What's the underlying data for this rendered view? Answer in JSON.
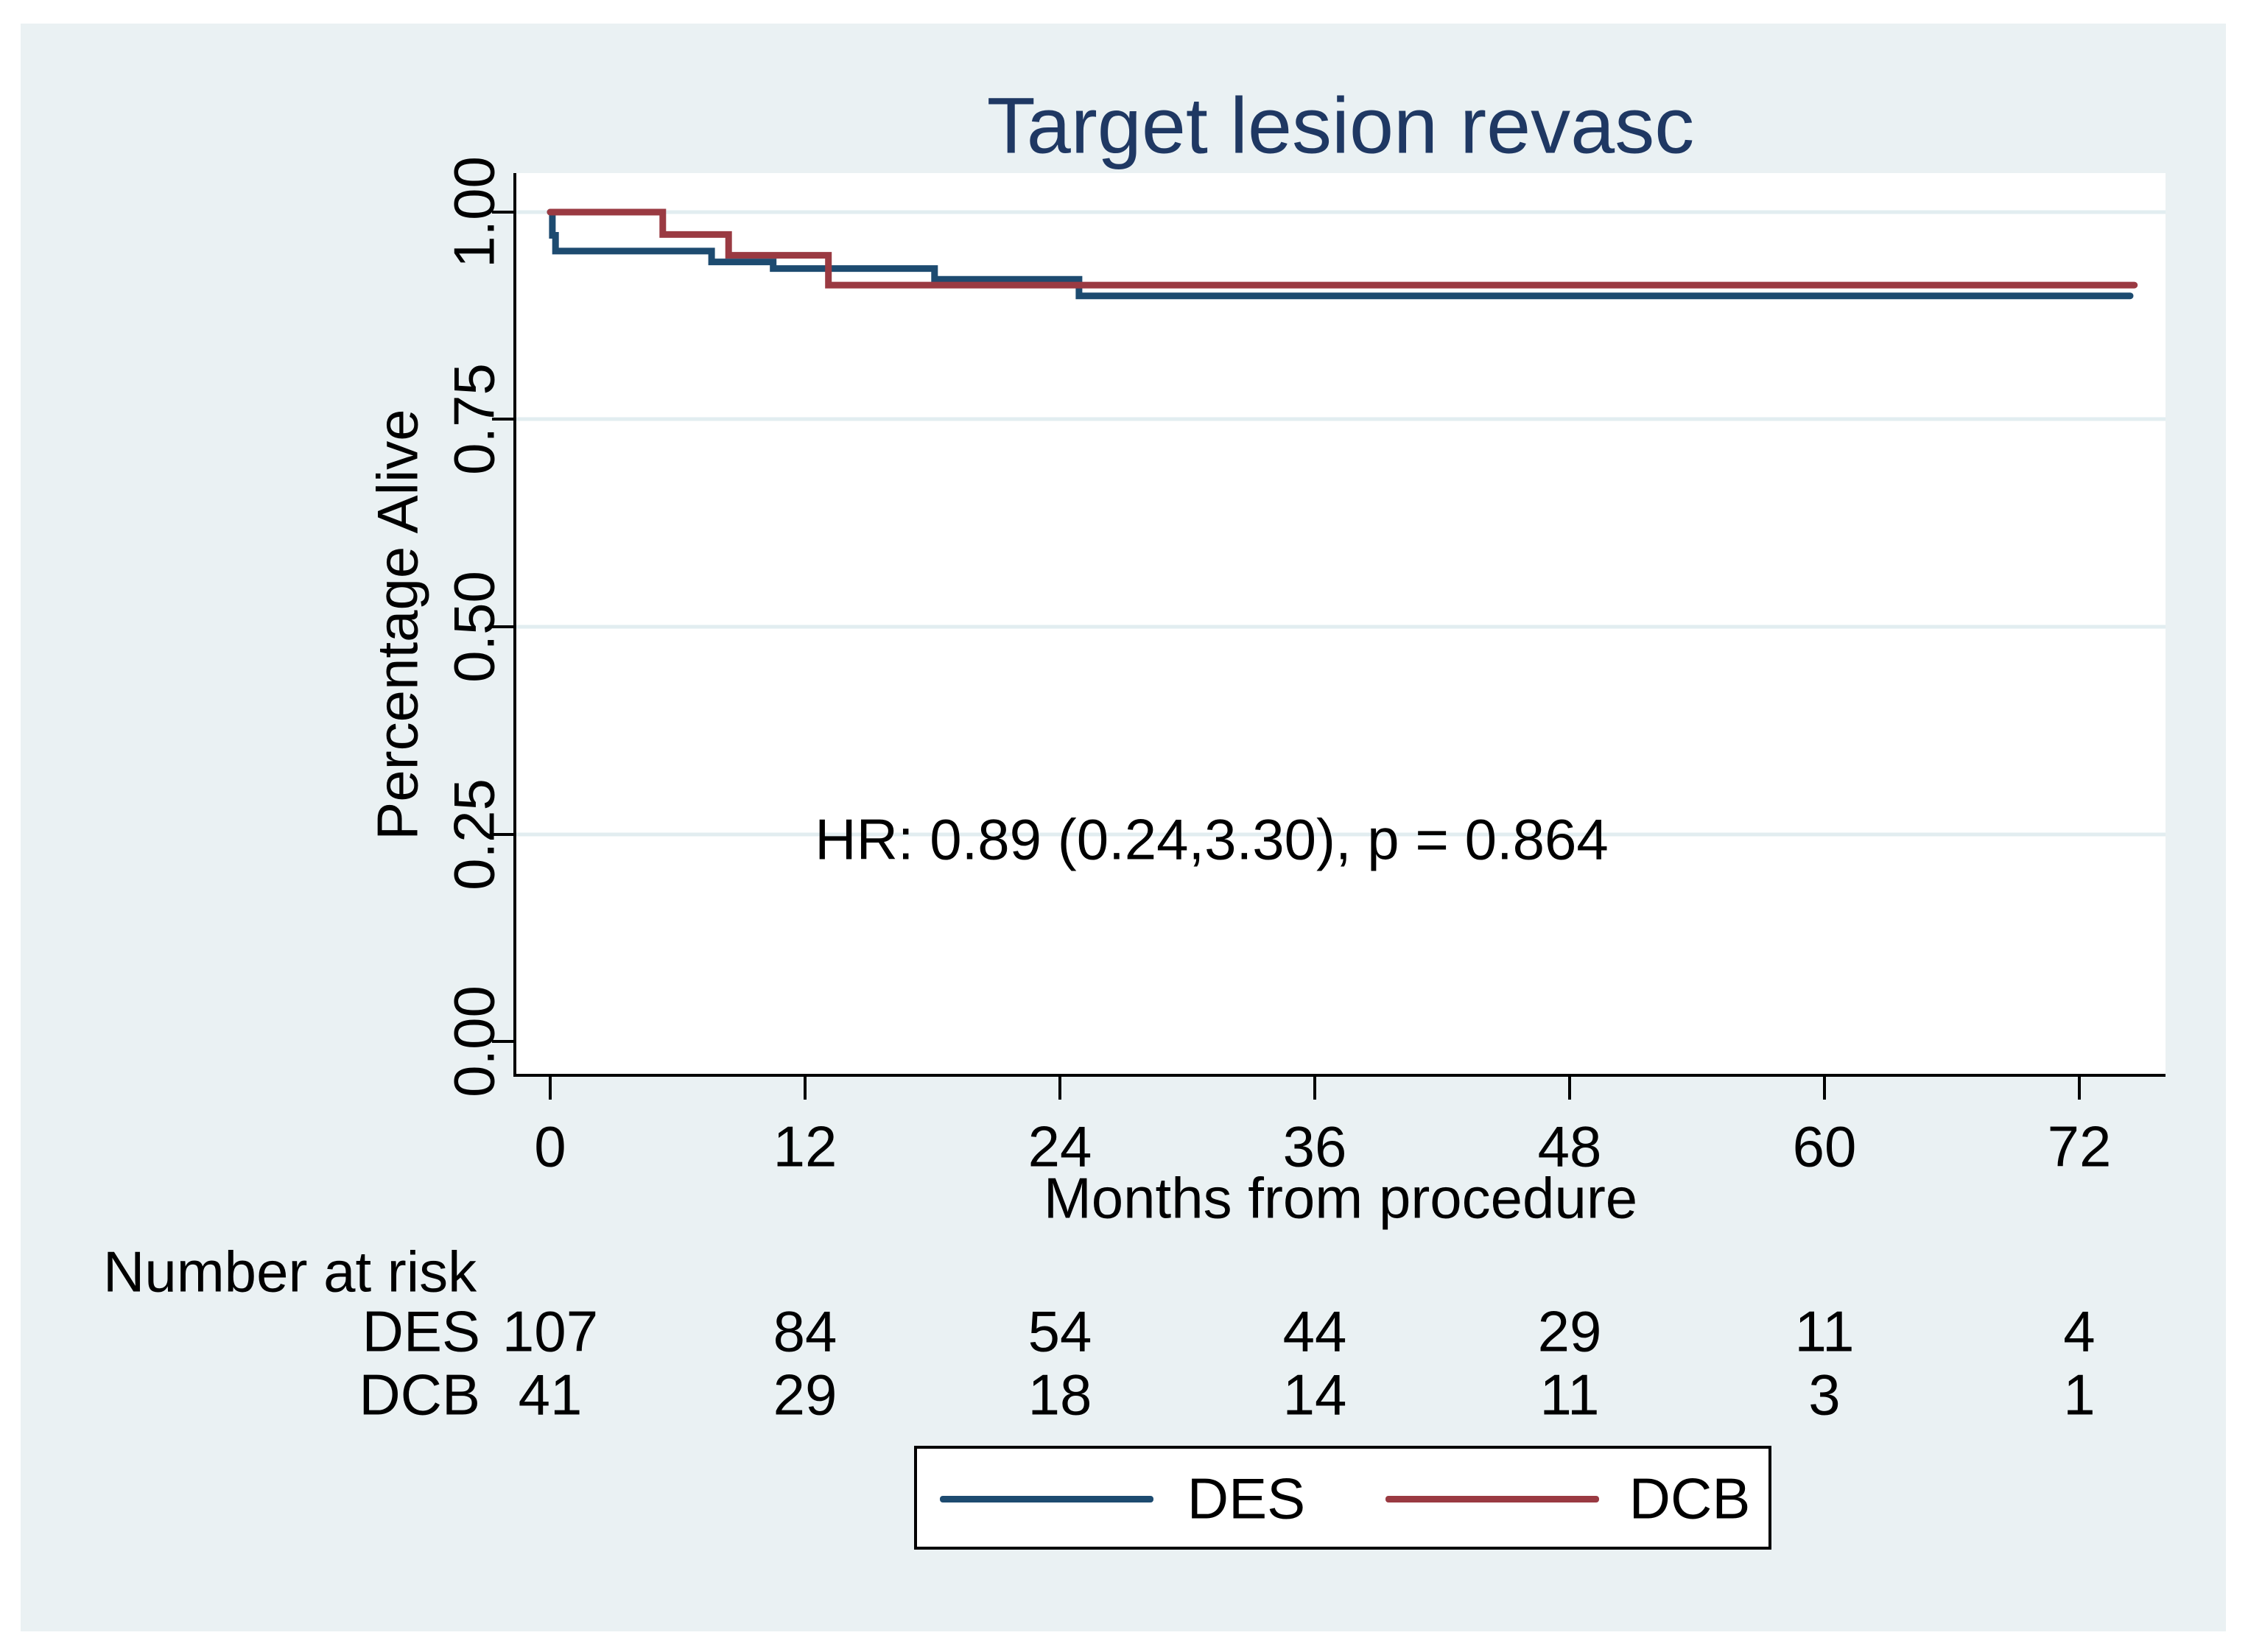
{
  "chart_data": {
    "type": "line",
    "subtype": "kaplan-meier-step",
    "title": "Target lesion revasc",
    "xlabel": "Months from procedure",
    "ylabel": "Percentage Alive",
    "annotation": "HR: 0.89 (0.24,3.30), p = 0.864",
    "x_tick_labels": [
      "0",
      "12",
      "24",
      "36",
      "48",
      "60",
      "72"
    ],
    "y_tick_labels_top_to_bottom": [
      "1.00",
      "0.75",
      "0.50",
      "0.25",
      "0.00"
    ],
    "xlim": [
      0,
      76
    ],
    "ylim": [
      -0.04,
      1.04
    ],
    "grid": "horizontal-light",
    "legend_position": "bottom-center",
    "title_color": "#1f3863",
    "background_color": "#eaf1f3",
    "plot_background": "#ffffff",
    "gridline_color": "#e2edf0",
    "series": [
      {
        "name": "DES",
        "color": "#1d4b70",
        "steps": [
          [
            0,
            1.0
          ],
          [
            0.1,
            0.972
          ],
          [
            0.25,
            0.953
          ],
          [
            7.6,
            0.94
          ],
          [
            10.5,
            0.932
          ],
          [
            18.1,
            0.919
          ],
          [
            24.9,
            0.899
          ]
        ],
        "end_x": 74.4
      },
      {
        "name": "DCB",
        "color": "#9a3a42",
        "steps": [
          [
            0,
            1.0
          ],
          [
            5.3,
            0.973
          ],
          [
            8.4,
            0.948
          ],
          [
            13.1,
            0.912
          ]
        ],
        "end_x": 74.6
      }
    ]
  },
  "risk_table": {
    "heading": "Number at risk",
    "rows": [
      {
        "label": "DES",
        "values": [
          "107",
          "84",
          "54",
          "44",
          "29",
          "11",
          "4"
        ]
      },
      {
        "label": "DCB",
        "values": [
          "41",
          "29",
          "18",
          "14",
          "11",
          "3",
          "1"
        ]
      }
    ]
  },
  "legend": {
    "items": [
      {
        "label": "DES",
        "color": "#1d4b70"
      },
      {
        "label": "DCB",
        "color": "#9a3a42"
      }
    ]
  }
}
